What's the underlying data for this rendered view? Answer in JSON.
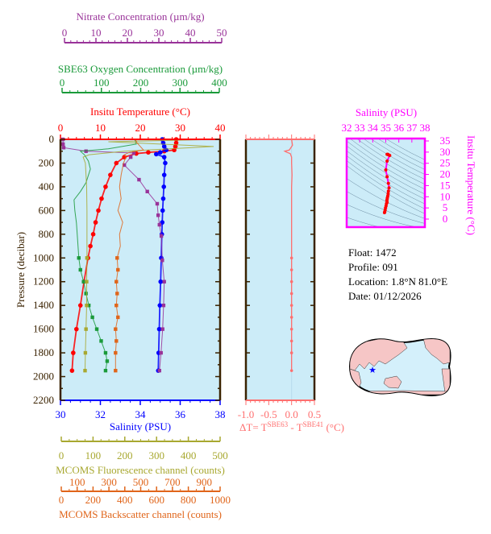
{
  "colors": {
    "temperature": "#ff0000",
    "salinity": "#0000ff",
    "nitrate": "#993399",
    "oxygen": "#1a9a3a",
    "fluorescence": "#a8a830",
    "backscatter": "#e0651a",
    "delta_t": "#ff6f6f",
    "ts": "#ff00ff",
    "frame": "#3a2200",
    "plot_bg": "#ccecf8"
  },
  "info": {
    "float": "Float:  1472",
    "profile": "Profile:  091",
    "location": "Location:  1.8°N  81.0°E",
    "date": "Date:  01/12/2026"
  },
  "chart_data": [
    {
      "type": "line",
      "panel": "profile",
      "ylabel": "Pressure (decibar)",
      "ylim": [
        2200,
        0
      ],
      "yticks": [
        "0",
        "200",
        "400",
        "600",
        "800",
        "1000",
        "1200",
        "1400",
        "1600",
        "1800",
        "2000",
        "2200"
      ],
      "grid": false,
      "axes": {
        "nitrate": {
          "title": "Nitrate Concentration (µm/kg)",
          "range": [
            0,
            50
          ],
          "ticks": [
            "0",
            "10",
            "20",
            "30",
            "40",
            "50"
          ]
        },
        "oxygen": {
          "title": "SBE63 Oxygen Concentration (µm/kg)",
          "range": [
            0,
            400
          ],
          "ticks": [
            "0",
            "100",
            "200",
            "300",
            "400"
          ]
        },
        "temperature": {
          "title": "Insitu Temperature (°C)",
          "range": [
            0,
            40
          ],
          "ticks": [
            "0",
            "10",
            "20",
            "30",
            "40"
          ]
        },
        "salinity": {
          "title": "Salinity (PSU)",
          "range": [
            30,
            38
          ],
          "ticks": [
            "30",
            "32",
            "34",
            "36",
            "38"
          ]
        },
        "fluorescence": {
          "title": "MCOMS Fluorescence channel (counts)",
          "range": [
            0,
            500
          ],
          "ticks": [
            "0",
            "100",
            "200",
            "300",
            "400",
            "500"
          ]
        },
        "backscatter": {
          "title": "MCOMS Backscatter channel (counts)",
          "range": [
            0,
            1000
          ],
          "ticks": [
            "0",
            "100",
            "200",
            "300",
            "400",
            "500",
            "600",
            "700",
            "800",
            "900",
            "1000"
          ]
        }
      },
      "series": [
        {
          "key": "temperature",
          "p": [
            0,
            30,
            60,
            90,
            100,
            110,
            120,
            150,
            200,
            300,
            400,
            500,
            600,
            700,
            800,
            900,
            1000,
            1200,
            1400,
            1600,
            1800,
            1950
          ],
          "v": [
            29,
            29,
            28.8,
            28.5,
            26,
            22,
            19,
            16,
            14,
            12.5,
            11.3,
            10.3,
            9.5,
            8.8,
            8.2,
            7.5,
            6.9,
            5.9,
            5.0,
            4.0,
            3.2,
            2.9
          ]
        },
        {
          "key": "salinity",
          "p": [
            0,
            30,
            60,
            90,
            110,
            125,
            150,
            200,
            300,
            400,
            500,
            600,
            700,
            800,
            1000,
            1200,
            1400,
            1600,
            1800,
            1950
          ],
          "v": [
            35.1,
            35.15,
            35.2,
            35.3,
            35.0,
            34.8,
            35.2,
            35.25,
            35.2,
            35.18,
            35.15,
            35.12,
            35.1,
            35.08,
            35.05,
            35.02,
            34.98,
            34.95,
            34.92,
            34.9
          ]
        },
        {
          "key": "nitrate",
          "p": [
            0,
            40,
            70,
            100,
            115,
            150,
            217,
            340,
            440,
            543,
            640,
            720,
            815,
            1020,
            1200,
            1400,
            1600,
            1800,
            1950
          ],
          "v": [
            0.8,
            0.8,
            1,
            8,
            23,
            22,
            20,
            24.6,
            27.2,
            30.3,
            30.6,
            31,
            31.6,
            31.9,
            32.5,
            32.3,
            32,
            31.5,
            31
          ]
        },
        {
          "key": "oxygen",
          "p": [
            0,
            40,
            80,
            100,
            130,
            183,
            250,
            365,
            440,
            510,
            600,
            705,
            850,
            1000,
            1100,
            1200,
            1300,
            1400,
            1500,
            1600,
            1700,
            1800,
            1870,
            1950
          ],
          "v": [
            186,
            190,
            120,
            50,
            60,
            70,
            75,
            64,
            50,
            34,
            36,
            40,
            43,
            46,
            50,
            58,
            64,
            71,
            80,
            91,
            102,
            113,
            117,
            113
          ]
        },
        {
          "key": "fluorescence",
          "p": [
            0,
            20,
            60,
            100,
            130,
            150,
            200,
            400,
            600,
            800,
            1000,
            1200,
            1400,
            1600,
            1800,
            1950
          ],
          "v": [
            500,
            150,
            480,
            200,
            90,
            71,
            78,
            82,
            83,
            83,
            83,
            82,
            82,
            80,
            78,
            77
          ]
        },
        {
          "key": "backscatter",
          "p": [
            0,
            30,
            60,
            90,
            110,
            130,
            150,
            200,
            300,
            400,
            500,
            600,
            700,
            800,
            900,
            1000,
            1100,
            1200,
            1300,
            1400,
            1500,
            1600,
            1700,
            1800,
            1950
          ],
          "v": [
            470,
            480,
            500,
            520,
            430,
            400,
            410,
            395,
            380,
            370,
            380,
            360,
            390,
            370,
            375,
            355,
            360,
            350,
            355,
            350,
            360,
            345,
            350,
            345,
            345
          ]
        }
      ]
    },
    {
      "type": "line",
      "panel": "delta_t",
      "xlabel": "ΔT= T",
      "xlabel_sup1": "SBE63",
      "xlabel_mid": " - T",
      "xlabel_sup2": "SBE41",
      "xlabel_end": " (°C)",
      "xlim": [
        -1.0,
        0.5
      ],
      "xticks": [
        "-1.0",
        "-0.5",
        "0.0",
        "0.5"
      ],
      "p": [
        0,
        50,
        90,
        100,
        110,
        120,
        150,
        200,
        300,
        400,
        500,
        600,
        700,
        800,
        900,
        1000,
        1100,
        1200,
        1300,
        1400,
        1500,
        1600,
        1700,
        1800,
        1950
      ],
      "v": [
        0,
        0.02,
        -0.05,
        -0.15,
        -0.1,
        -0.03,
        0,
        0,
        0.01,
        0,
        0,
        0,
        0,
        0,
        0,
        0,
        0,
        0,
        0,
        0,
        0,
        0,
        0,
        0,
        0
      ]
    },
    {
      "type": "scatter",
      "panel": "ts_diagram",
      "xlabel": "Salinity (PSU)",
      "ylabel": "Insitu Temperature (°C)",
      "xlim": [
        32,
        38
      ],
      "ylim": [
        0,
        35
      ],
      "xticks": [
        "32",
        "33",
        "34",
        "35",
        "36",
        "37",
        "38"
      ],
      "yticks": [
        "0",
        "5",
        "10",
        "15",
        "20",
        "25",
        "30",
        "35"
      ]
    }
  ]
}
